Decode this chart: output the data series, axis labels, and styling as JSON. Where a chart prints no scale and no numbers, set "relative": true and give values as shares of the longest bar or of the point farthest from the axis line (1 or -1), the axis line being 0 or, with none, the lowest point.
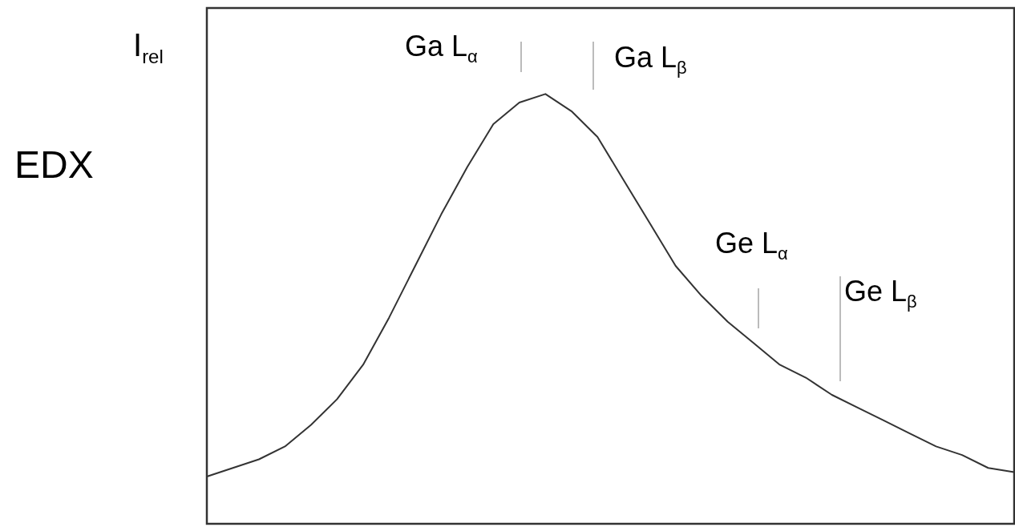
{
  "chart_data": {
    "type": "line",
    "title": "EDX",
    "ylabel": "I$_{rel}$",
    "relative": true,
    "legend": false,
    "marker": "none",
    "line_style": "solid",
    "categories": [
      null,
      null,
      null,
      null,
      null,
      null,
      null,
      null,
      null,
      null,
      null,
      null,
      null,
      null,
      null,
      null,
      null,
      null,
      null,
      null,
      null,
      null,
      null,
      null,
      null,
      null,
      null,
      null,
      null,
      null,
      null,
      null
    ],
    "series": [
      {
        "color": "#333333",
        "values": [
          0.11,
          0.13,
          0.15,
          0.18,
          0.23,
          0.29,
          0.37,
          0.48,
          0.6,
          0.72,
          0.83,
          0.93,
          0.98,
          1,
          0.96,
          0.9,
          0.8,
          0.7,
          0.6,
          0.53,
          0.47,
          0.42,
          0.37,
          0.34,
          0.3,
          0.27,
          0.24,
          0.21,
          0.18,
          0.16,
          0.13,
          0.12
        ]
      }
    ],
    "annotations": [
      "Ga L$_{α}$",
      "Ga L$_{β}$",
      "Ge L$_{α}$",
      "Ge L$_{β}$"
    ]
  }
}
